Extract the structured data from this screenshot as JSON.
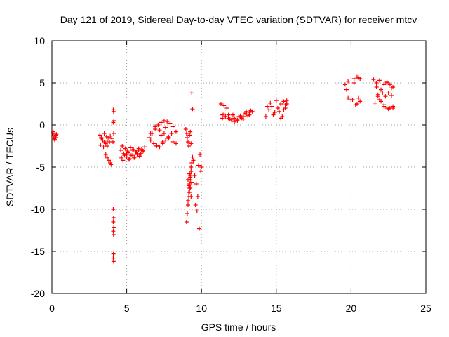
{
  "chart_data": {
    "type": "scatter",
    "title": "Day 121 of 2019, Sidereal Day-to-day VTEC variation (SDTVAR) for receiver mtcv",
    "xlabel": "GPS time / hours",
    "ylabel": "SDTVAR / TECUs",
    "xlim": [
      0,
      25
    ],
    "ylim": [
      -20,
      10
    ],
    "xticks": [
      0,
      5,
      10,
      15,
      20,
      25
    ],
    "yticks": [
      -20,
      -15,
      -10,
      -5,
      0,
      5,
      10
    ],
    "xtick_labels": [
      "0",
      "5",
      "10",
      "15",
      "20",
      "25"
    ],
    "ytick_labels": [
      "-20",
      "-15",
      "-10",
      "-5",
      "0",
      "5",
      "10"
    ],
    "grid": true,
    "marker": "+",
    "color": "#ff0000",
    "series": [
      {
        "name": "SDTVAR",
        "x": [
          0.05,
          0.1,
          0.15,
          0.2,
          0.25,
          0.3,
          0.08,
          0.18,
          0.28,
          3.2,
          3.3,
          3.4,
          3.5,
          3.6,
          3.7,
          3.8,
          3.9,
          4.0,
          3.25,
          3.45,
          3.65,
          3.85,
          3.3,
          3.5,
          3.7,
          3.6,
          3.7,
          3.8,
          3.9,
          3.95,
          4.1,
          4.12,
          4.14,
          4.1,
          4.13,
          4.08,
          4.1,
          4.12,
          4.1,
          4.13,
          4.1,
          4.12,
          4.11,
          4.1,
          4.12,
          4.6,
          4.8,
          5.0,
          5.2,
          5.4,
          5.6,
          5.8,
          6.0,
          6.2,
          4.7,
          4.9,
          5.1,
          5.3,
          5.5,
          5.7,
          5.9,
          6.1,
          4.65,
          4.85,
          5.05,
          5.25,
          5.45,
          5.65,
          5.85,
          6.05,
          4.75,
          5.15,
          5.55,
          5.95,
          5.0,
          5.4,
          5.8,
          6.5,
          6.7,
          6.9,
          7.1,
          7.3,
          7.5,
          7.7,
          7.9,
          8.1,
          8.3,
          6.6,
          6.8,
          7.0,
          7.2,
          7.4,
          7.6,
          7.8,
          8.0,
          6.6,
          6.9,
          7.2,
          7.5,
          7.8,
          8.1,
          8.3,
          7.0,
          7.4,
          7.8,
          7.3,
          7.6,
          8.95,
          9.0,
          9.05,
          9.1,
          9.15,
          9.2,
          9.25,
          9.3,
          9.35,
          9.4,
          9.0,
          9.05,
          9.1,
          9.15,
          9.2,
          9.25,
          9.3,
          9.35,
          9.4,
          9.45,
          9.1,
          9.15,
          9.2,
          9.25,
          9.3,
          9.35,
          9.2,
          9.25,
          9.3,
          9.1,
          9.15,
          9.2,
          9.25,
          9.6,
          9.7,
          9.8,
          9.9,
          10.0,
          9.55,
          9.65,
          9.75,
          9.85,
          9.95,
          11.3,
          11.5,
          11.7,
          11.4,
          11.6,
          11.8,
          11.4,
          11.6,
          11.8,
          12.0,
          12.2,
          12.4,
          12.6,
          12.8,
          13.0,
          13.2,
          13.4,
          11.5,
          11.9,
          12.3,
          12.7,
          13.1,
          12.1,
          12.5,
          12.9,
          13.3,
          12.2,
          12.6,
          13.0,
          12.4,
          12.8,
          13.2,
          14.3,
          14.5,
          14.7,
          14.9,
          15.1,
          15.3,
          15.5,
          15.7,
          14.4,
          14.8,
          15.2,
          15.6,
          14.6,
          15.0,
          15.4,
          15.5,
          15.6,
          15.7,
          15.3,
          19.6,
          19.7,
          19.8,
          20.0,
          20.2,
          20.4,
          20.6,
          19.8,
          20.1,
          20.4,
          20.6,
          20.2,
          20.5,
          20.3,
          20.5,
          21.5,
          21.6,
          21.7,
          21.8,
          21.9,
          22.0,
          22.2,
          22.4,
          22.6,
          22.8,
          21.6,
          21.8,
          22.0,
          22.2,
          22.4,
          22.6,
          22.8,
          22.1,
          22.3,
          22.5,
          22.7,
          22.2,
          22.5,
          22.8,
          21.7,
          21.9,
          22.4,
          22.7
        ],
        "y": [
          -1.0,
          -1.3,
          -1.6,
          -1.8,
          -1.5,
          -1.1,
          -0.8,
          -1.7,
          -1.2,
          -1.2,
          -1.5,
          -1.8,
          -2.0,
          -2.2,
          -1.8,
          -1.5,
          -1.3,
          -1.6,
          -2.4,
          -2.6,
          -1.4,
          -2.0,
          -1.6,
          -1.0,
          -2.5,
          -3.5,
          -3.9,
          -4.2,
          -4.5,
          -4.7,
          1.8,
          1.6,
          0.5,
          0.3,
          -1.0,
          -2.0,
          -10.0,
          -11.0,
          -11.5,
          -12.2,
          -12.6,
          -13.0,
          -15.3,
          -15.8,
          -16.2,
          -3.0,
          -3.4,
          -3.8,
          -4.0,
          -3.6,
          -3.2,
          -3.0,
          -2.9,
          -2.6,
          -2.5,
          -2.8,
          -3.3,
          -3.6,
          -3.9,
          -3.5,
          -3.4,
          -3.1,
          -3.9,
          -3.6,
          -3.1,
          -2.7,
          -2.9,
          -3.2,
          -3.7,
          -3.0,
          -4.2,
          -4.1,
          -3.8,
          -3.4,
          -3.5,
          -3.0,
          -2.8,
          -1.5,
          -1.0,
          -0.5,
          0.0,
          0.3,
          0.5,
          0.4,
          0.2,
          -0.2,
          -0.8,
          -1.8,
          -2.2,
          -2.4,
          -2.6,
          -2.2,
          -1.8,
          -1.4,
          -1.0,
          -1.0,
          -0.2,
          -0.6,
          -1.0,
          -1.5,
          -2.0,
          -2.2,
          -2.5,
          -2.0,
          -1.6,
          -1.2,
          -0.3,
          -0.5,
          -1.0,
          -1.5,
          -2.0,
          -2.5,
          -1.2,
          -0.8,
          -2.2,
          3.8,
          1.9,
          -11.5,
          -10.5,
          -9.5,
          -8.5,
          -7.5,
          -6.5,
          -5.5,
          -4.5,
          -3.8,
          -4.2,
          -9.0,
          -8.0,
          -7.0,
          -6.0,
          -5.0,
          -6.8,
          -5.8,
          -7.5,
          -8.5,
          -6.5,
          -7.2,
          -8.0,
          -6.2,
          -9.5,
          -10.2,
          -4.8,
          -3.5,
          -5.0,
          -6.0,
          -7.0,
          -8.5,
          -12.3,
          -5.5,
          2.5,
          2.3,
          2.0,
          1.2,
          1.0,
          0.8,
          0.8,
          1.0,
          1.2,
          0.6,
          0.4,
          0.6,
          0.9,
          1.0,
          1.3,
          1.5,
          1.6,
          1.3,
          0.7,
          0.5,
          0.8,
          1.1,
          1.2,
          1.0,
          1.4,
          1.7,
          0.8,
          1.1,
          1.6,
          0.5,
          0.7,
          1.2,
          1.0,
          1.8,
          2.2,
          1.5,
          2.0,
          2.5,
          2.8,
          2.5,
          2.2,
          1.2,
          1.6,
          2.0,
          2.6,
          2.9,
          1.0,
          1.8,
          2.4,
          2.9,
          0.8,
          4.8,
          4.2,
          3.2,
          3.0,
          5.5,
          5.7,
          5.5,
          5.2,
          3.0,
          2.5,
          2.8,
          5.0,
          5.6,
          2.4,
          3.2,
          5.4,
          5.2,
          4.5,
          3.6,
          3.0,
          2.8,
          2.4,
          2.0,
          2.0,
          2.2,
          2.6,
          3.4,
          4.2,
          4.8,
          5.0,
          4.8,
          4.5,
          3.8,
          3.4,
          3.8,
          4.4,
          2.2,
          1.9,
          2.0,
          5.0,
          5.3,
          5.1,
          3.5
        ]
      }
    ]
  }
}
